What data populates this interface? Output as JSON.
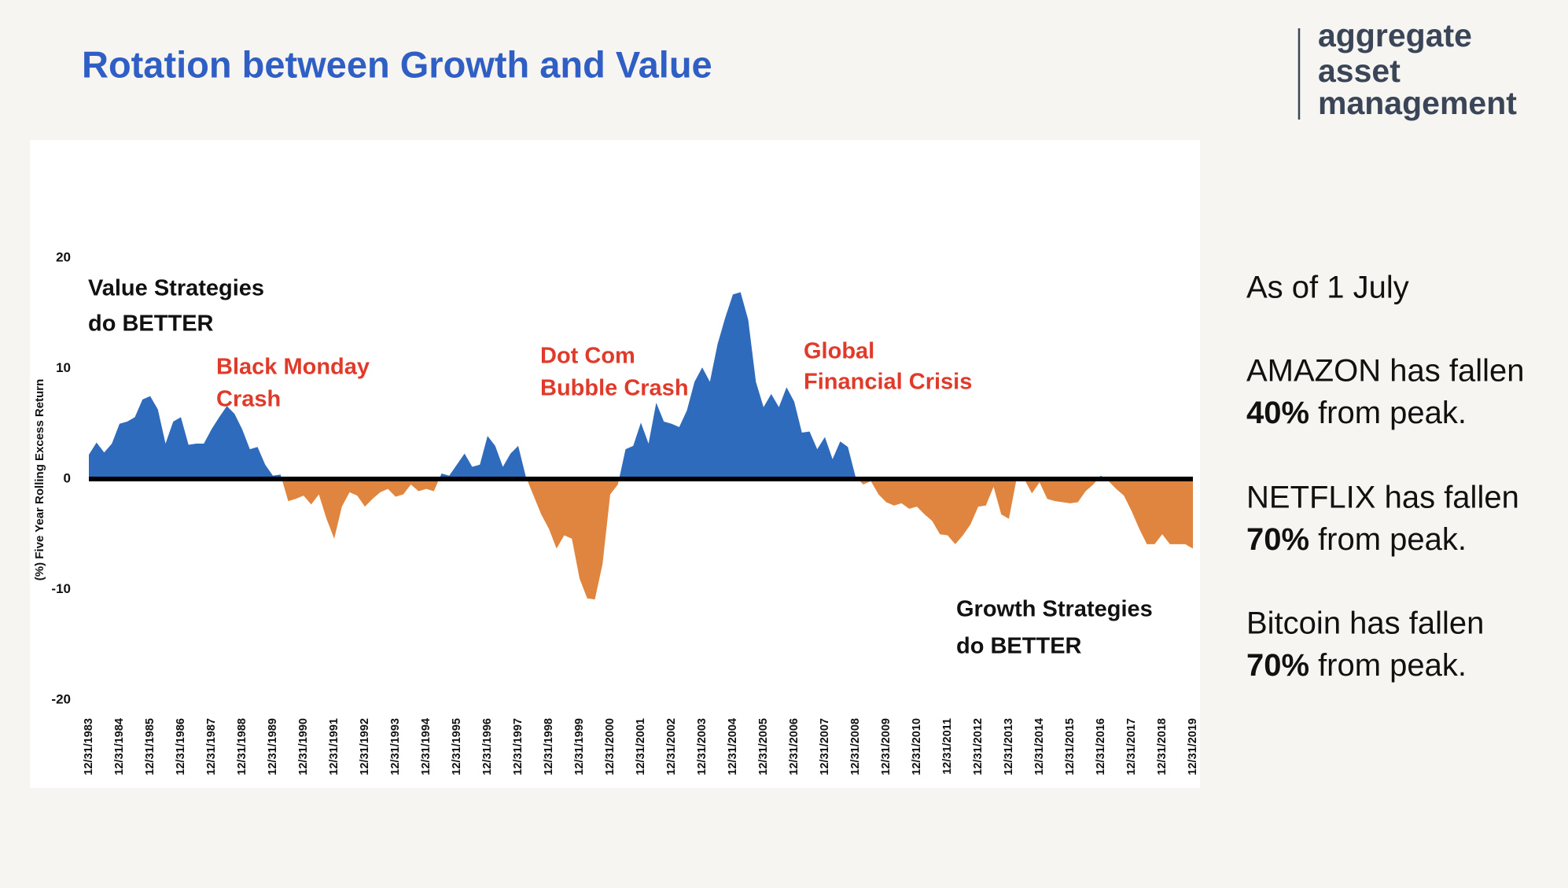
{
  "slide": {
    "title": "Rotation between Growth and Value",
    "logo": [
      "aggregate",
      "asset",
      "management"
    ],
    "as_of": "As of 1 July",
    "notes": [
      {
        "text": "AMAZON has fallen",
        "bold": "40%",
        "rest": "from peak."
      },
      {
        "text": "NETFLIX has fallen",
        "bold": "70%",
        "rest": "from peak."
      },
      {
        "text": "Bitcoin has fallen",
        "bold": "70%",
        "rest": "from peak."
      }
    ]
  },
  "chart_data": {
    "type": "area",
    "y_label": "(%) Five Year Rolling Excess Return",
    "positive_color": "#2f6bbd",
    "negative_color": "#e0853f",
    "x": [
      1983,
      1983.25,
      1983.5,
      1983.75,
      1984,
      1984.25,
      1984.5,
      1984.75,
      1985,
      1985.25,
      1985.5,
      1985.75,
      1986,
      1986.25,
      1986.5,
      1986.75,
      1987,
      1987.25,
      1987.5,
      1987.75,
      1988,
      1988.25,
      1988.5,
      1988.75,
      1989,
      1989.25,
      1989.5,
      1989.75,
      1990,
      1990.25,
      1990.5,
      1990.75,
      1991,
      1991.25,
      1991.5,
      1991.75,
      1992,
      1992.25,
      1992.5,
      1992.75,
      1993,
      1993.25,
      1993.5,
      1993.75,
      1994,
      1994.25,
      1994.5,
      1994.75,
      1995,
      1995.25,
      1995.5,
      1995.75,
      1996,
      1996.25,
      1996.5,
      1996.75,
      1997,
      1997.25,
      1997.5,
      1997.75,
      1998,
      1998.25,
      1998.5,
      1998.75,
      1999,
      1999.25,
      1999.5,
      1999.75,
      2000,
      2000.25,
      2000.5,
      2000.75,
      2001,
      2001.25,
      2001.5,
      2001.75,
      2002,
      2002.25,
      2002.5,
      2002.75,
      2003,
      2003.25,
      2003.5,
      2003.75,
      2004,
      2004.25,
      2004.5,
      2004.75,
      2005,
      2005.25,
      2005.5,
      2005.75,
      2006,
      2006.25,
      2006.5,
      2006.75,
      2007,
      2007.25,
      2007.5,
      2007.75,
      2008,
      2008.25,
      2008.5,
      2008.75,
      2009,
      2009.25,
      2009.5,
      2009.75,
      2010,
      2010.25,
      2010.5,
      2010.75,
      2011,
      2011.25,
      2011.5,
      2011.75,
      2012,
      2012.25,
      2012.5,
      2012.75,
      2013,
      2013.25,
      2013.5,
      2013.75,
      2014,
      2014.25,
      2014.5,
      2014.75,
      2015,
      2015.25,
      2015.5,
      2015.75,
      2016,
      2016.25,
      2016.5,
      2016.75,
      2017,
      2017.25,
      2017.5,
      2017.75,
      2018,
      2018.25,
      2018.5,
      2018.75,
      2019
    ],
    "values": [
      2.2,
      3.3,
      2.4,
      3.2,
      5.0,
      5.2,
      5.6,
      7.2,
      7.5,
      6.3,
      3.2,
      5.2,
      5.6,
      3.1,
      3.2,
      3.2,
      4.5,
      5.6,
      6.6,
      5.9,
      4.5,
      2.7,
      2.9,
      1.3,
      0.3,
      0.4,
      -2.0,
      -1.8,
      -1.5,
      -2.3,
      -1.4,
      -3.6,
      -5.4,
      -2.5,
      -1.2,
      -1.5,
      -2.5,
      -1.8,
      -1.2,
      -0.9,
      -1.6,
      -1.4,
      -0.5,
      -1.1,
      -0.9,
      -1.1,
      0.5,
      0.3,
      1.3,
      2.3,
      1.1,
      1.3,
      3.9,
      3.0,
      1.1,
      2.3,
      3.0,
      0.2,
      -1.5,
      -3.2,
      -4.5,
      -6.3,
      -5.1,
      -5.4,
      -9.0,
      -10.8,
      -10.9,
      -7.7,
      -1.4,
      -0.5,
      2.7,
      3.0,
      5.1,
      3.2,
      6.9,
      5.2,
      5.0,
      4.7,
      6.2,
      8.8,
      10.1,
      8.8,
      12.2,
      14.6,
      16.7,
      16.9,
      14.4,
      8.8,
      6.5,
      7.7,
      6.5,
      8.3,
      7.0,
      4.2,
      4.3,
      2.7,
      3.8,
      1.8,
      3.4,
      2.9,
      0.2,
      -0.5,
      -0.2,
      -1.4,
      -2.1,
      -2.4,
      -2.2,
      -2.7,
      -2.5,
      -3.2,
      -3.8,
      -5.0,
      -5.1,
      -5.9,
      -5.1,
      -4.1,
      -2.5,
      -2.4,
      -0.7,
      -3.2,
      -3.6,
      0,
      0,
      -1.3,
      -0.3,
      -1.8,
      -2.0,
      -2.1,
      -2.2,
      -2.1,
      -1.1,
      -0.5,
      0.3,
      -0.2,
      -0.9,
      -1.5,
      -2.9,
      -4.5,
      -5.9,
      -5.9,
      -5.0,
      -5.9,
      -5.9,
      -5.9,
      -6.3
    ],
    "xlim": [
      1983,
      2019
    ],
    "xticks": [
      {
        "value": 1983,
        "label": "12/31/1983"
      },
      {
        "value": 1984,
        "label": "12/31/1984"
      },
      {
        "value": 1985,
        "label": "12/31/1985"
      },
      {
        "value": 1986,
        "label": "12/31/1986"
      },
      {
        "value": 1987,
        "label": "12/31/1987"
      },
      {
        "value": 1988,
        "label": "12/31/1988"
      },
      {
        "value": 1989,
        "label": "12/31/1989"
      },
      {
        "value": 1990,
        "label": "12/31/1990"
      },
      {
        "value": 1991,
        "label": "12/31/1991"
      },
      {
        "value": 1992,
        "label": "12/31/1992"
      },
      {
        "value": 1993,
        "label": "12/31/1993"
      },
      {
        "value": 1994,
        "label": "12/31/1994"
      },
      {
        "value": 1995,
        "label": "12/31/1995"
      },
      {
        "value": 1996,
        "label": "12/31/1996"
      },
      {
        "value": 1997,
        "label": "12/31/1997"
      },
      {
        "value": 1998,
        "label": "12/31/1998"
      },
      {
        "value": 1999,
        "label": "12/31/1999"
      },
      {
        "value": 2000,
        "label": "12/31/2000"
      },
      {
        "value": 2001,
        "label": "12/31/2001"
      },
      {
        "value": 2002,
        "label": "12/31/2002"
      },
      {
        "value": 2003,
        "label": "12/31/2003"
      },
      {
        "value": 2004,
        "label": "12/31/2004"
      },
      {
        "value": 2005,
        "label": "12/31/2005"
      },
      {
        "value": 2006,
        "label": "12/31/2006"
      },
      {
        "value": 2007,
        "label": "12/31/2007"
      },
      {
        "value": 2008,
        "label": "12/31/2008"
      },
      {
        "value": 2009,
        "label": "12/31/2009"
      },
      {
        "value": 2010,
        "label": "12/31/2010"
      },
      {
        "value": 2011,
        "label": "12/31/2011"
      },
      {
        "value": 2012,
        "label": "12/31/2012"
      },
      {
        "value": 2013,
        "label": "12/31/2013"
      },
      {
        "value": 2014,
        "label": "12/31/2014"
      },
      {
        "value": 2015,
        "label": "12/31/2015"
      },
      {
        "value": 2016,
        "label": "12/31/2016"
      },
      {
        "value": 2017,
        "label": "12/31/2017"
      },
      {
        "value": 2018,
        "label": "12/31/2018"
      },
      {
        "value": 2019,
        "label": "12/31/2019"
      }
    ],
    "ylim": [
      -20,
      20
    ],
    "yticks": [
      20,
      10,
      0,
      -10,
      -20
    ],
    "annotations": [
      {
        "lines": [
          "Value Strategies",
          "do BETTER"
        ],
        "color": "#111111"
      },
      {
        "lines": [
          "Black Monday",
          "Crash"
        ],
        "color": "#e03a2a"
      },
      {
        "lines": [
          "Dot Com",
          "Bubble Crash"
        ],
        "color": "#e03a2a"
      },
      {
        "lines": [
          "Global",
          "Financial Crisis"
        ],
        "color": "#e03a2a"
      },
      {
        "lines": [
          "Growth Strategies",
          "do BETTER"
        ],
        "color": "#111111"
      }
    ]
  }
}
